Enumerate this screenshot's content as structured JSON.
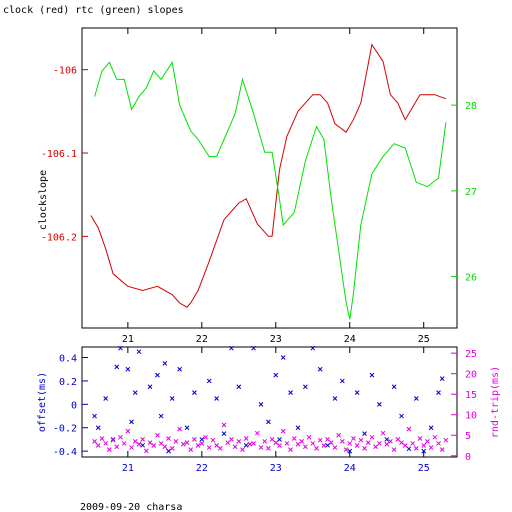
{
  "title": "clock (red) rtc (green) slopes",
  "footer": "2009-09-20 charsa",
  "colors": {
    "red": "#d40000",
    "green": "#00e000",
    "blue": "#0000cc",
    "magenta": "#e000e0",
    "black": "#000000"
  },
  "chart_data": [
    {
      "type": "line",
      "title": "clock (red) rtc (green) slopes",
      "xlim": [
        20.38,
        25.45
      ],
      "x_ticks": [
        21,
        22,
        23,
        24,
        25
      ],
      "x_tick_labels": [
        "21",
        "22",
        "23",
        "24",
        "25"
      ],
      "ylabel": "clockslope",
      "ylim": [
        -106.31,
        -105.95
      ],
      "y_ticks": [
        -106,
        -106.1,
        -106.2
      ],
      "y_tick_labels": [
        "-106",
        "-106.1",
        "-106.2"
      ],
      "y2lim": [
        25.4,
        28.9
      ],
      "y2_ticks": [
        28,
        27,
        26
      ],
      "y2_tick_labels": [
        "28",
        "27",
        "26"
      ],
      "series": [
        {
          "color": "#d40000",
          "axis": "left",
          "x": [
            20.5,
            20.6,
            20.7,
            20.8,
            21.0,
            21.2,
            21.4,
            21.6,
            21.7,
            21.8,
            21.85,
            21.95,
            22.1,
            22.3,
            22.5,
            22.6,
            22.75,
            22.9,
            22.95,
            23.05,
            23.15,
            23.3,
            23.5,
            23.6,
            23.7,
            23.8,
            23.95,
            24.05,
            24.15,
            24.3,
            24.45,
            24.55,
            24.65,
            24.75,
            24.85,
            24.95,
            25.15,
            25.3
          ],
          "y": [
            -106.175,
            -106.19,
            -106.215,
            -106.245,
            -106.26,
            -106.265,
            -106.26,
            -106.27,
            -106.28,
            -106.285,
            -106.28,
            -106.265,
            -106.23,
            -106.18,
            -106.16,
            -106.155,
            -106.185,
            -106.2,
            -106.2,
            -106.12,
            -106.08,
            -106.05,
            -106.03,
            -106.03,
            -106.04,
            -106.065,
            -106.075,
            -106.06,
            -106.04,
            -105.97,
            -105.99,
            -106.03,
            -106.04,
            -106.06,
            -106.045,
            -106.03,
            -106.03,
            -106.035
          ]
        },
        {
          "color": "#00e000",
          "axis": "right",
          "x": [
            20.55,
            20.65,
            20.75,
            20.85,
            20.95,
            21.05,
            21.15,
            21.25,
            21.35,
            21.45,
            21.6,
            21.7,
            21.85,
            21.95,
            22.1,
            22.2,
            22.35,
            22.45,
            22.55,
            22.7,
            22.85,
            22.95,
            23.05,
            23.1,
            23.25,
            23.4,
            23.55,
            23.65,
            23.75,
            23.85,
            23.95,
            24.0,
            24.05,
            24.15,
            24.3,
            24.45,
            24.6,
            24.75,
            24.9,
            25.05,
            25.2,
            25.3
          ],
          "y": [
            28.1,
            28.4,
            28.5,
            28.3,
            28.3,
            27.95,
            28.1,
            28.2,
            28.4,
            28.3,
            28.5,
            28.0,
            27.7,
            27.6,
            27.4,
            27.4,
            27.7,
            27.9,
            28.3,
            27.9,
            27.45,
            27.45,
            26.9,
            26.6,
            26.75,
            27.35,
            27.75,
            27.6,
            26.9,
            26.3,
            25.7,
            25.5,
            25.8,
            26.6,
            27.2,
            27.4,
            27.55,
            27.5,
            27.1,
            27.05,
            27.15,
            27.8
          ]
        }
      ]
    },
    {
      "type": "scatter",
      "xlim": [
        20.38,
        25.45
      ],
      "x_ticks": [
        21,
        22,
        23,
        24,
        25
      ],
      "x_tick_labels": [
        "21",
        "22",
        "23",
        "24",
        "25"
      ],
      "ylabel": "offset(ms)",
      "ylim": [
        -0.45,
        0.49
      ],
      "y_ticks": [
        0.4,
        0.2,
        0,
        -0.2,
        -0.4
      ],
      "y_tick_labels": [
        "0.4",
        "0.2",
        "0",
        "-0.2",
        "-0.4"
      ],
      "y2label": "rnd-trip(ms)",
      "y2lim": [
        -0.3,
        26.5
      ],
      "y2_ticks": [
        25,
        20,
        15,
        10,
        5,
        0
      ],
      "y2_tick_labels": [
        "25",
        "20",
        "15",
        "10",
        "5",
        "0"
      ],
      "series": [
        {
          "color": "#0000cc",
          "axis": "left",
          "x": [
            20.55,
            20.6,
            20.7,
            20.8,
            20.85,
            20.9,
            21.0,
            21.05,
            21.1,
            21.15,
            21.2,
            21.3,
            21.4,
            21.45,
            21.5,
            21.55,
            21.6,
            21.7,
            21.8,
            21.9,
            22.0,
            22.1,
            22.2,
            22.3,
            22.4,
            22.5,
            22.6,
            22.7,
            22.8,
            22.9,
            23.0,
            23.05,
            23.1,
            23.2,
            23.3,
            23.4,
            23.5,
            23.6,
            23.7,
            23.8,
            23.9,
            24.0,
            24.1,
            24.2,
            24.3,
            24.4,
            24.5,
            24.6,
            24.7,
            24.8,
            24.9,
            25.0,
            25.1,
            25.2,
            25.25
          ],
          "y": [
            -0.1,
            -0.2,
            0.05,
            -0.3,
            0.32,
            0.48,
            0.3,
            -0.15,
            0.1,
            0.45,
            -0.35,
            0.15,
            0.25,
            -0.1,
            0.35,
            -0.4,
            0.05,
            0.3,
            -0.2,
            0.1,
            -0.3,
            0.2,
            0.05,
            -0.25,
            0.48,
            0.15,
            -0.35,
            0.48,
            0.0,
            -0.15,
            0.25,
            -0.3,
            0.4,
            0.1,
            -0.2,
            0.15,
            0.48,
            0.3,
            -0.35,
            0.05,
            0.2,
            -0.4,
            0.1,
            -0.25,
            0.25,
            0.0,
            -0.3,
            0.15,
            -0.1,
            -0.38,
            0.05,
            -0.4,
            -0.2,
            0.1,
            0.22
          ]
        },
        {
          "color": "#e000e0",
          "axis": "right",
          "x": [
            20.55,
            20.6,
            20.65,
            20.7,
            20.75,
            20.8,
            20.85,
            20.9,
            20.95,
            21.0,
            21.05,
            21.1,
            21.15,
            21.2,
            21.25,
            21.3,
            21.35,
            21.4,
            21.45,
            21.5,
            21.55,
            21.6,
            21.65,
            21.7,
            21.75,
            21.8,
            21.85,
            21.9,
            21.95,
            22.0,
            22.05,
            22.1,
            22.15,
            22.2,
            22.25,
            22.3,
            22.35,
            22.4,
            22.45,
            22.5,
            22.55,
            22.6,
            22.65,
            22.7,
            22.75,
            22.8,
            22.85,
            22.9,
            22.95,
            23.0,
            23.05,
            23.1,
            23.15,
            23.2,
            23.25,
            23.3,
            23.35,
            23.4,
            23.45,
            23.5,
            23.55,
            23.6,
            23.65,
            23.7,
            23.75,
            23.8,
            23.85,
            23.9,
            23.95,
            24.0,
            24.05,
            24.1,
            24.15,
            24.2,
            24.25,
            24.3,
            24.35,
            24.4,
            24.45,
            24.5,
            24.55,
            24.6,
            24.65,
            24.7,
            24.75,
            24.8,
            24.85,
            24.9,
            24.95,
            25.0,
            25.05,
            25.1,
            25.15,
            25.2,
            25.25,
            25.3
          ],
          "y": [
            3.5,
            2.5,
            4.2,
            3.0,
            1.5,
            3.8,
            2.2,
            4.5,
            3.0,
            6.0,
            2.0,
            3.5,
            2.8,
            4.0,
            1.2,
            3.2,
            2.5,
            5.0,
            3.0,
            2.2,
            4.2,
            1.8,
            3.5,
            6.5,
            2.8,
            3.2,
            1.5,
            4.0,
            2.5,
            3.0,
            4.5,
            2.0,
            3.8,
            2.5,
            1.8,
            7.5,
            3.2,
            4.0,
            2.2,
            3.5,
            1.5,
            4.2,
            2.8,
            3.0,
            5.5,
            2.0,
            3.5,
            1.8,
            4.0,
            3.2,
            2.5,
            6.0,
            3.0,
            1.5,
            4.2,
            2.8,
            3.5,
            2.2,
            4.5,
            3.0,
            1.8,
            3.8,
            2.5,
            4.0,
            3.2,
            2.0,
            5.0,
            3.5,
            1.5,
            3.0,
            4.2,
            2.5,
            3.8,
            1.8,
            3.2,
            4.5,
            2.2,
            3.0,
            5.5,
            2.8,
            3.5,
            1.5,
            4.0,
            3.2,
            2.5,
            6.5,
            3.0,
            1.8,
            4.2,
            2.5,
            3.5,
            2.0,
            4.5,
            3.0,
            1.5,
            3.8
          ]
        }
      ]
    }
  ]
}
